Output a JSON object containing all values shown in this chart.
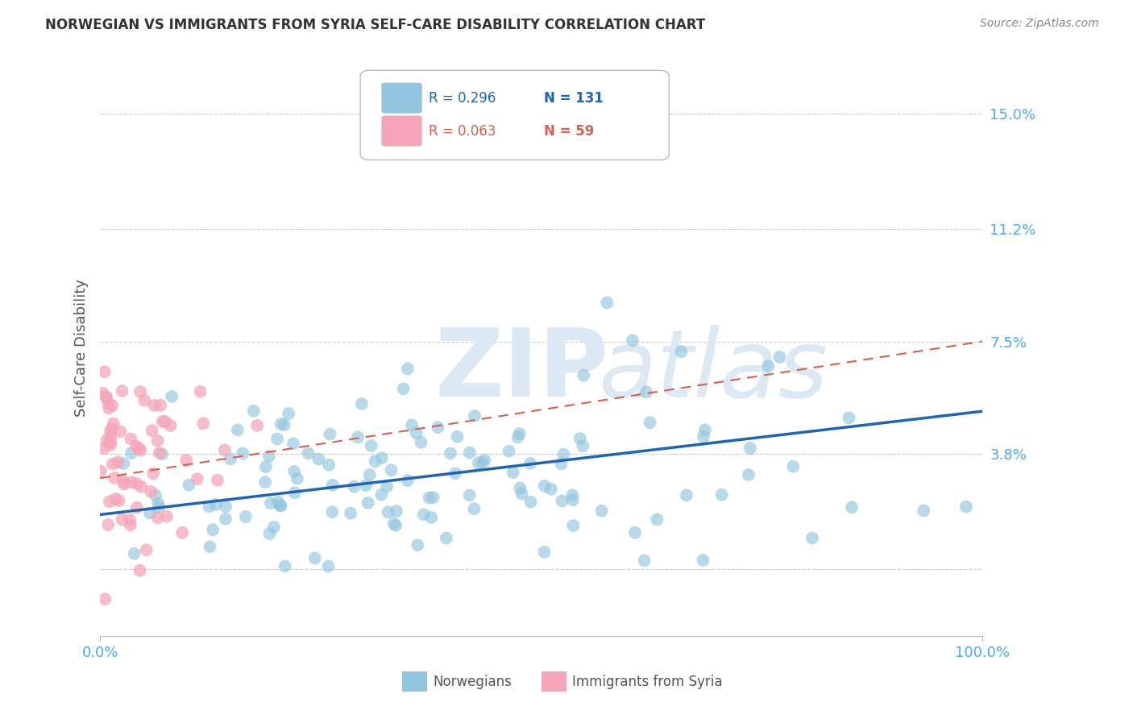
{
  "title": "NORWEGIAN VS IMMIGRANTS FROM SYRIA SELF-CARE DISABILITY CORRELATION CHART",
  "source": "Source: ZipAtlas.com",
  "ylabel": "Self-Care Disability",
  "watermark_zip": "ZIP",
  "watermark_atlas": "atlas",
  "xlim": [
    0.0,
    1.0
  ],
  "ylim": [
    -0.022,
    0.168
  ],
  "yticks": [
    0.0,
    0.038,
    0.075,
    0.112,
    0.15
  ],
  "ytick_labels": [
    "",
    "3.8%",
    "7.5%",
    "11.2%",
    "15.0%"
  ],
  "xtick_labels": [
    "0.0%",
    "100.0%"
  ],
  "legend_blue_R": "R = 0.296",
  "legend_blue_N": "N = 131",
  "legend_pink_R": "R = 0.063",
  "legend_pink_N": "N = 59",
  "blue_color": "#92c5de",
  "pink_color": "#f4a6b8",
  "blue_line_color": "#2166ac",
  "pink_line_color": "#d6604d",
  "grid_color": "#cccccc",
  "background_color": "#ffffff",
  "title_color": "#333333",
  "axis_label_color": "#555555",
  "tick_label_color": "#4da6ff",
  "watermark_color": "#dce9f5",
  "blue_seed": 42,
  "pink_seed": 99,
  "blue_n": 131,
  "pink_n": 59,
  "blue_R": 0.296,
  "pink_R": 0.063,
  "blue_trend_x0": 0.0,
  "blue_trend_y0": 0.018,
  "blue_trend_x1": 1.0,
  "blue_trend_y1": 0.052,
  "pink_trend_x0": 0.0,
  "pink_trend_y0": 0.03,
  "pink_trend_x1": 1.0,
  "pink_trend_y1": 0.075
}
